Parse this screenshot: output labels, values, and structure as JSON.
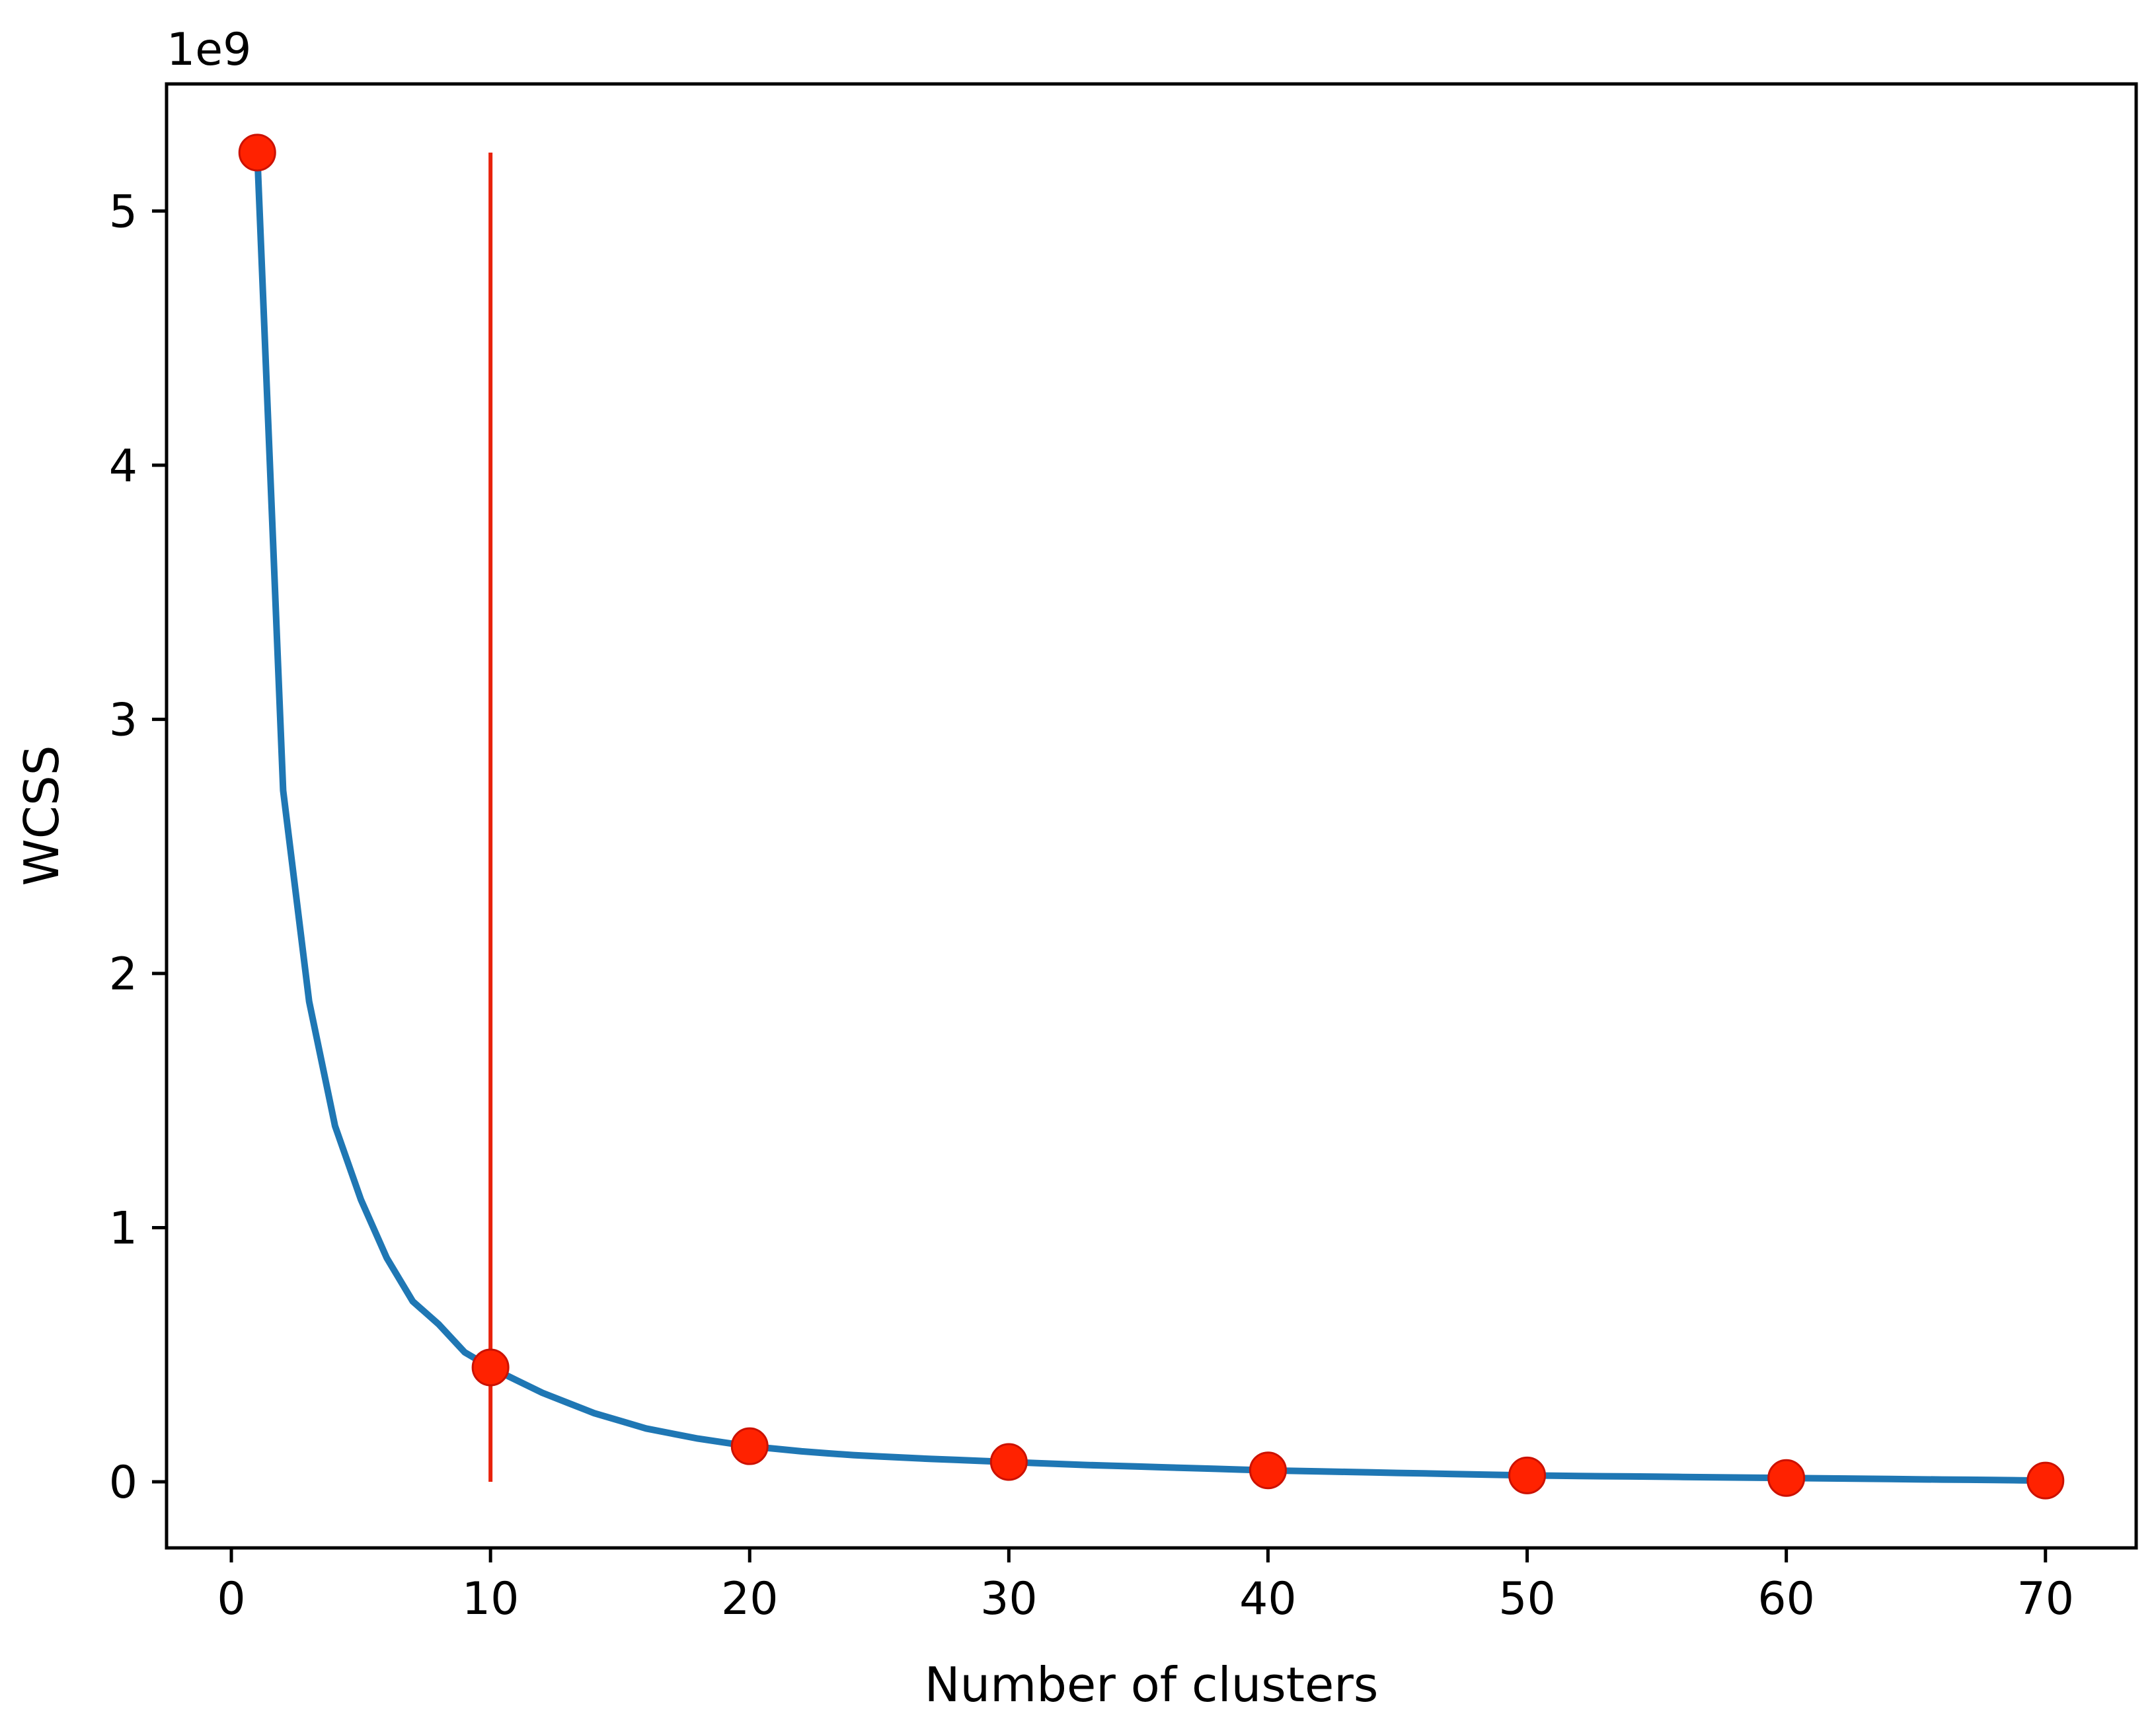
{
  "chart_data": {
    "type": "line",
    "title": "",
    "xlabel": "Number of clusters",
    "ylabel": "WCSS",
    "y_offset_label": "1e9",
    "xlim": [
      -2.5,
      73.5
    ],
    "ylim": [
      -0.26,
      5.5
    ],
    "x_ticks": [
      0,
      10,
      20,
      30,
      40,
      50,
      60,
      70
    ],
    "x_tick_labels": [
      "0",
      "10",
      "20",
      "30",
      "40",
      "50",
      "60",
      "70"
    ],
    "y_ticks": [
      0,
      1,
      2,
      3,
      4,
      5
    ],
    "y_tick_labels": [
      "0",
      "1",
      "2",
      "3",
      "4",
      "5"
    ],
    "grid": false,
    "colors": {
      "line": "#1f77b4",
      "markers": "#ff2200",
      "vline": "#e8220c",
      "marker_edge": "#cc1100"
    },
    "series": [
      {
        "x": [
          1,
          2,
          3,
          4,
          5,
          6,
          7,
          8,
          9,
          10,
          11,
          12,
          13,
          14,
          15,
          16,
          17,
          18,
          19,
          20,
          21,
          22,
          23,
          24,
          25,
          26,
          27,
          28,
          29,
          30,
          31,
          32,
          33,
          34,
          35,
          36,
          37,
          38,
          39,
          40,
          41,
          42,
          43,
          44,
          45,
          46,
          47,
          48,
          49,
          50,
          51,
          52,
          53,
          54,
          55,
          56,
          57,
          58,
          59,
          60,
          61,
          62,
          63,
          64,
          65,
          66,
          67,
          68,
          69,
          70
        ],
        "values": [
          5.23,
          2.72,
          1.89,
          1.4,
          1.11,
          0.88,
          0.71,
          0.62,
          0.51,
          0.45,
          0.4,
          0.35,
          0.31,
          0.27,
          0.24,
          0.21,
          0.19,
          0.17,
          0.155,
          0.14,
          0.13,
          0.12,
          0.112,
          0.105,
          0.1,
          0.095,
          0.09,
          0.086,
          0.082,
          0.078,
          0.074,
          0.07,
          0.066,
          0.063,
          0.06,
          0.057,
          0.054,
          0.051,
          0.048,
          0.045,
          0.043,
          0.041,
          0.039,
          0.037,
          0.035,
          0.033,
          0.031,
          0.029,
          0.027,
          0.025,
          0.024,
          0.023,
          0.022,
          0.021,
          0.02,
          0.019,
          0.018,
          0.017,
          0.016,
          0.015,
          0.014,
          0.013,
          0.012,
          0.011,
          0.01,
          0.009,
          0.008,
          0.007,
          0.006,
          0.005
        ]
      }
    ],
    "markers": {
      "x": [
        1,
        10,
        20,
        30,
        40,
        50,
        60,
        70
      ],
      "values": [
        5.23,
        0.45,
        0.14,
        0.078,
        0.045,
        0.025,
        0.015,
        0.005
      ]
    },
    "vline": {
      "x": 10,
      "ymin": 0,
      "ymax": 5.23
    }
  }
}
